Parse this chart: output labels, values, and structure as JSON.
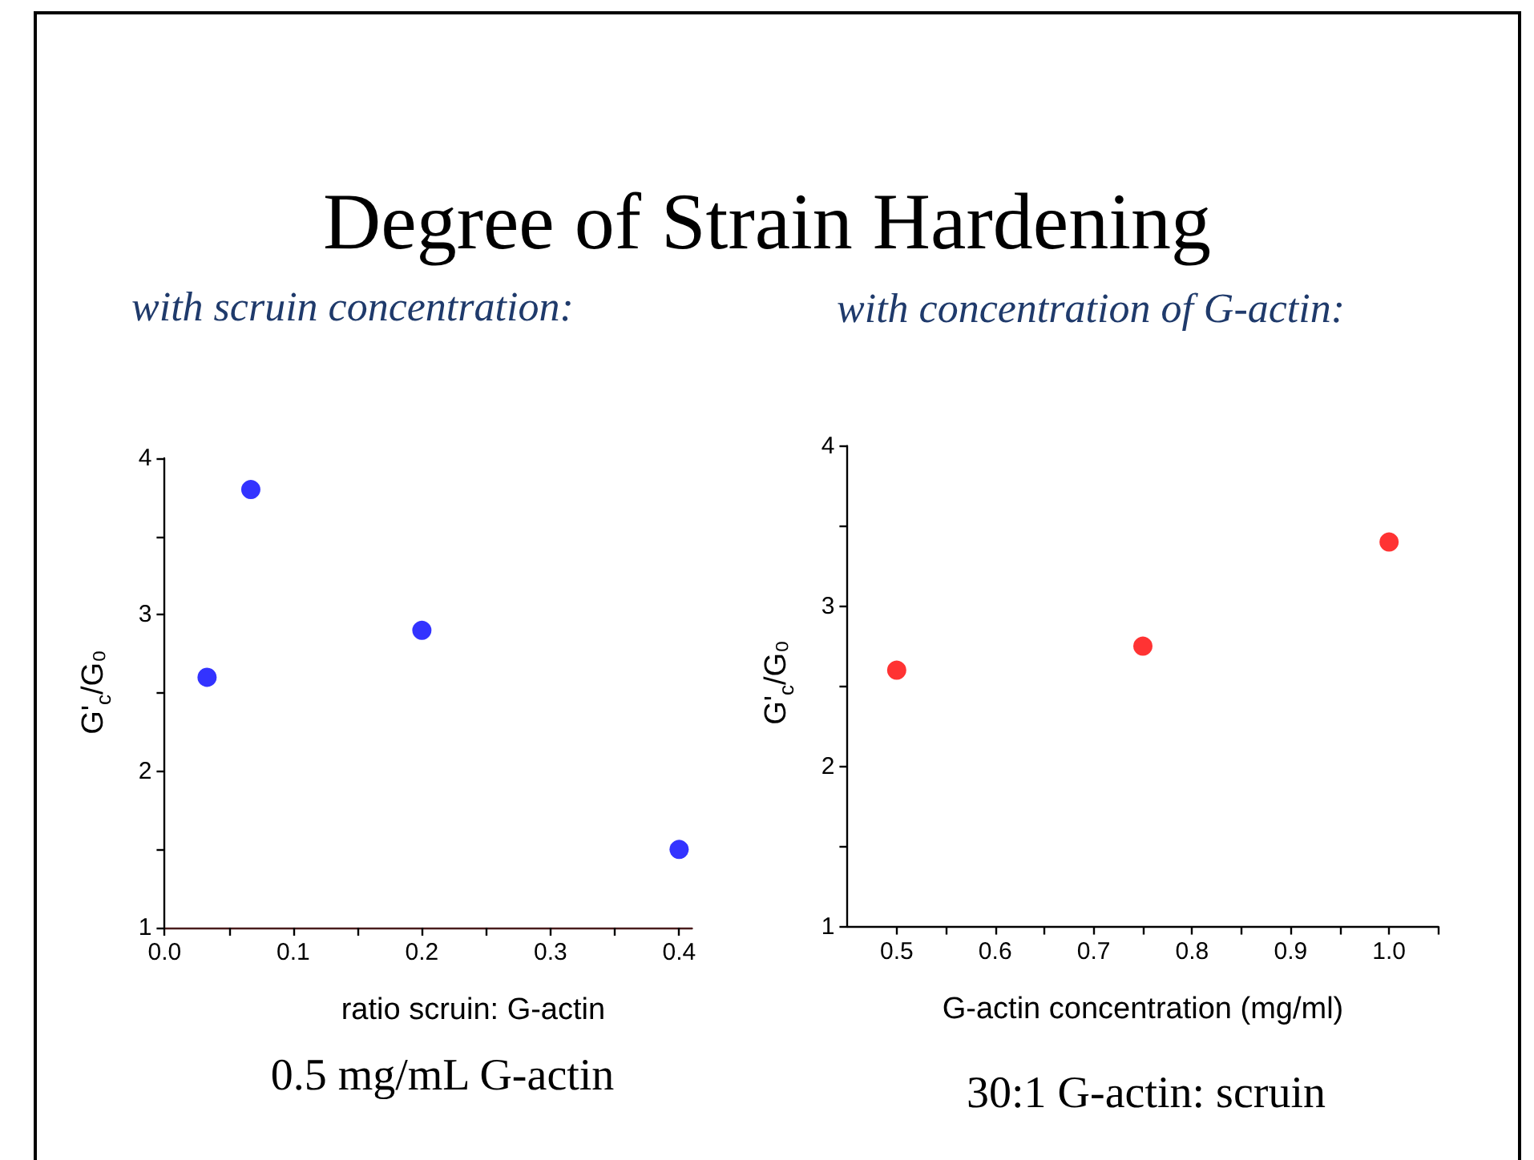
{
  "chart_data": [
    {
      "type": "scatter",
      "title": "Degree of Strain Hardening",
      "subtitle": "with scruin concentration:",
      "xlabel": "ratio scruin: G-actin",
      "ylabel": "G'$_{c}$/G₀",
      "annotations": [
        "0.5 mg/mL G-actin"
      ],
      "x": [
        0.033,
        0.067,
        0.2,
        0.4
      ],
      "values": [
        2.6,
        3.8,
        2.9,
        1.5
      ],
      "color": "#0000ff",
      "marker": "circle",
      "xlim": [
        0,
        0.41
      ],
      "xticks": [
        {
          "value": 0,
          "label": "0.0"
        },
        {
          "value": 0.05,
          "label": null
        },
        0.1,
        {
          "value": 0.15,
          "label": null
        },
        0.2,
        {
          "value": 0.25,
          "label": null
        },
        0.3,
        {
          "value": 0.35,
          "label": null
        },
        0.4
      ],
      "ylim": [
        1,
        4
      ],
      "yticks": [
        1,
        {
          "value": 1.5,
          "label": null
        },
        2,
        {
          "value": 2.5,
          "label": null
        },
        3,
        {
          "value": 3.5,
          "label": null
        },
        4
      ]
    },
    {
      "type": "scatter",
      "subtitle": "with concentration of G-actin:",
      "xlabel": "G-actin concentration (mg/ml)",
      "ylabel": "G'$_{c}$/G₀",
      "annotations": [
        "30:1 G-actin: scruin"
      ],
      "x": [
        0.5,
        0.75,
        1.0
      ],
      "values": [
        2.6,
        2.75,
        3.4
      ],
      "color": "#ff0000",
      "marker": "circle",
      "xlim": [
        0.45,
        1.05
      ],
      "xticks": [
        0.5,
        {
          "value": 0.55,
          "label": null
        },
        0.6,
        {
          "value": 0.65,
          "label": null
        },
        0.7,
        {
          "value": 0.75,
          "label": null
        },
        0.8,
        {
          "value": 0.85,
          "label": null
        },
        0.9,
        {
          "value": 0.95,
          "label": null
        },
        {
          "value": 1,
          "label": "1.0"
        },
        {
          "value": 1.05,
          "label": null
        }
      ],
      "ylim": [
        1,
        4
      ],
      "yticks": [
        1,
        {
          "value": 1.5,
          "label": null
        },
        2,
        {
          "value": 2.5,
          "label": null
        },
        3,
        {
          "value": 3.5,
          "label": null
        },
        4
      ]
    }
  ]
}
